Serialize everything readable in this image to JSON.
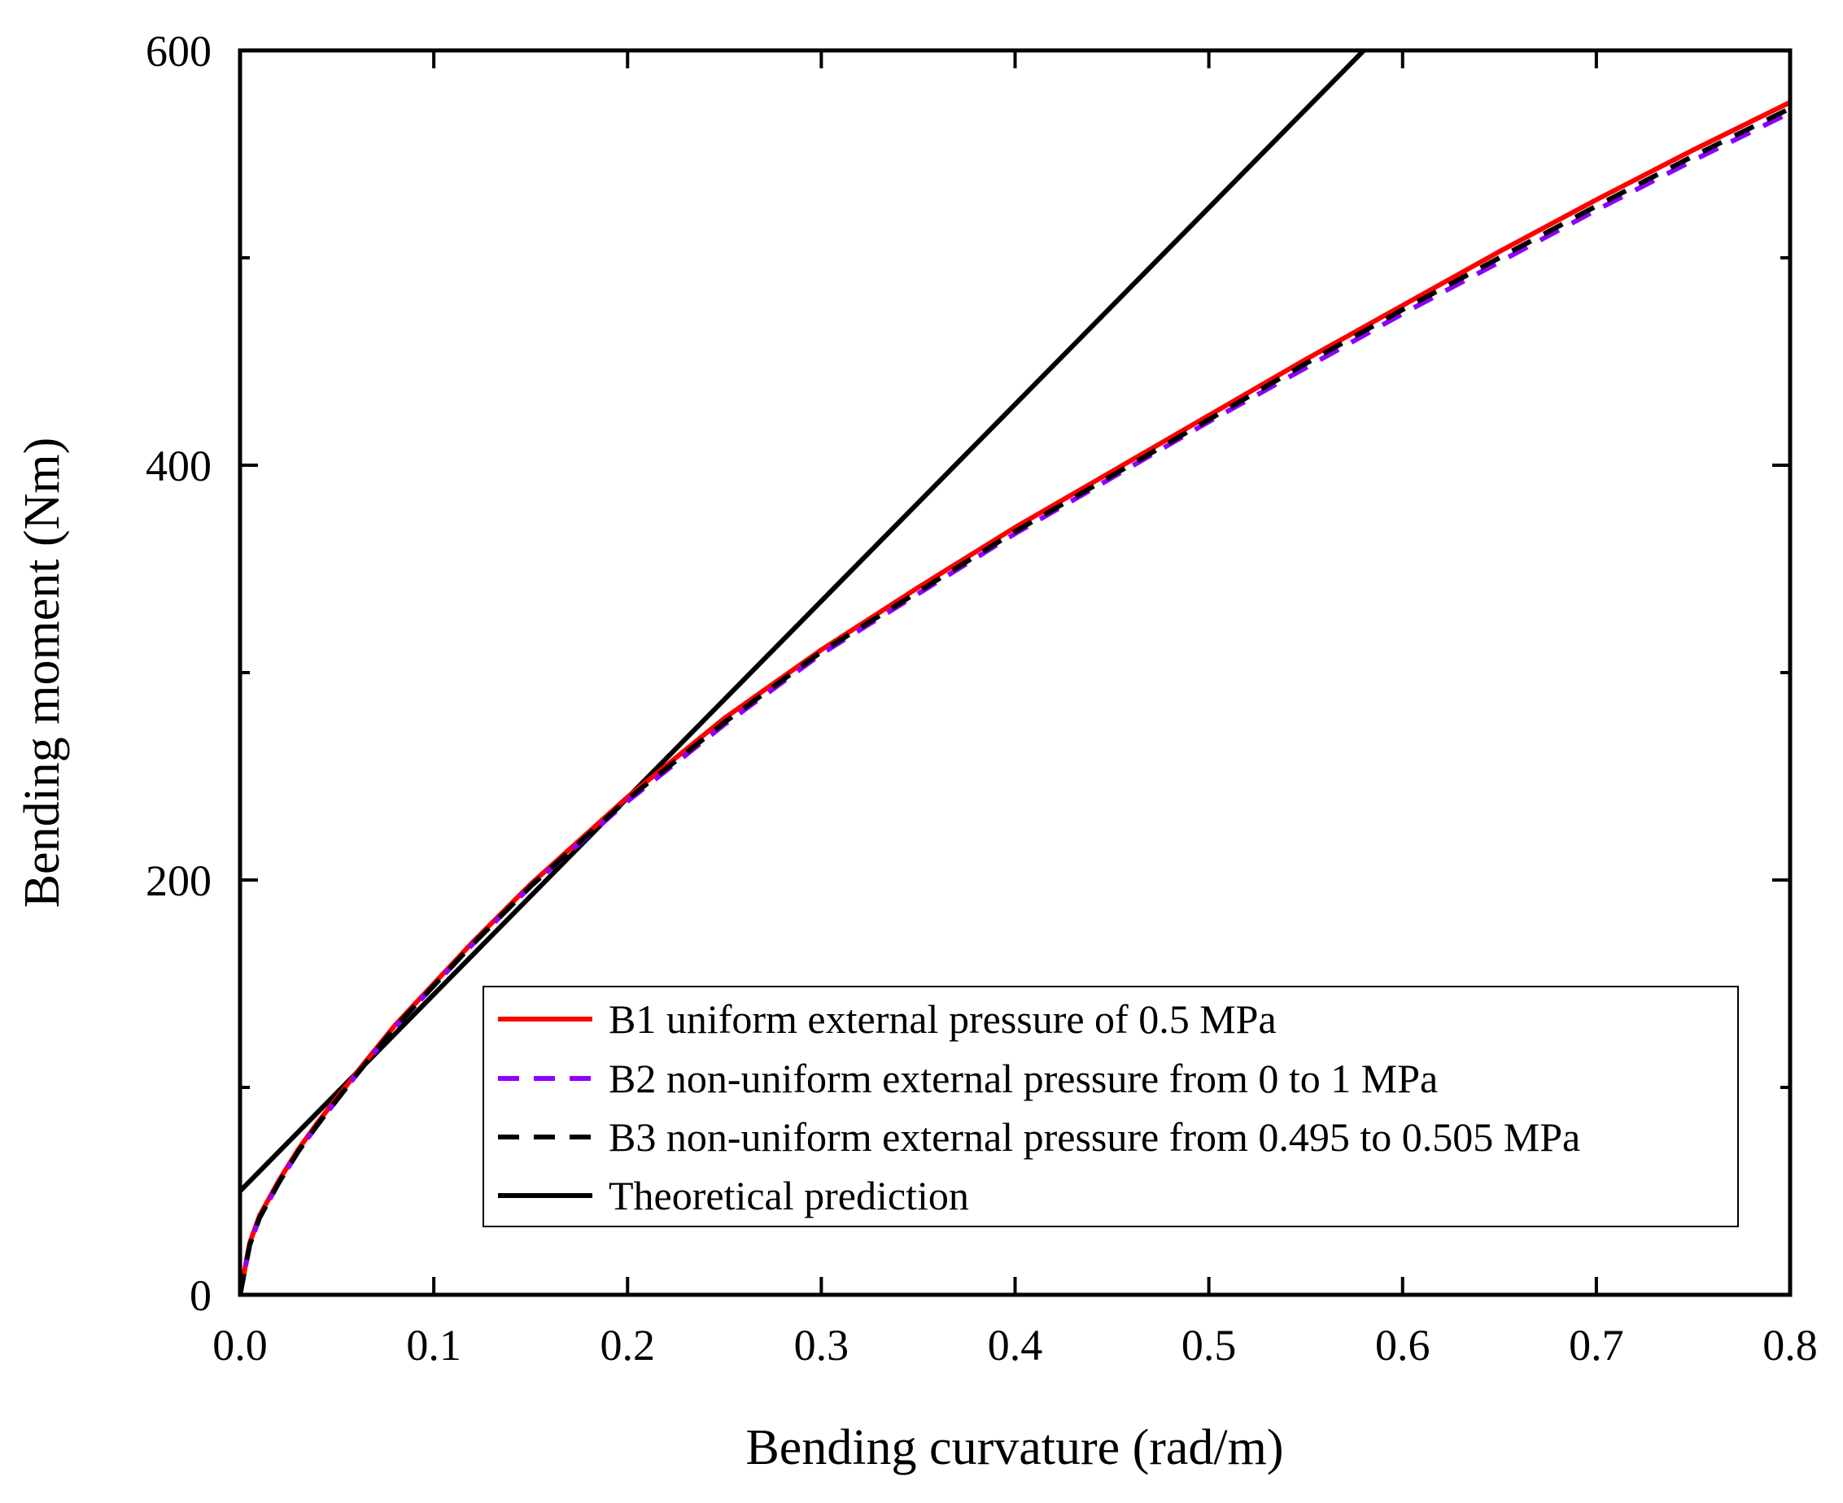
{
  "chart_data": {
    "type": "line",
    "xlabel": "Bending curvature (rad/m)",
    "ylabel": "Bending moment (Nm)",
    "xlim": [
      0,
      0.8
    ],
    "ylim": [
      0,
      600
    ],
    "x_ticks": [
      0.0,
      0.1,
      0.2,
      0.3,
      0.4,
      0.5,
      0.6,
      0.7,
      0.8
    ],
    "x_tick_labels": [
      "0.0",
      "0.1",
      "0.2",
      "0.3",
      "0.4",
      "0.5",
      "0.6",
      "0.7",
      "0.8"
    ],
    "y_ticks": [
      0,
      200,
      400,
      600
    ],
    "y_tick_labels": [
      "0",
      "200",
      "400",
      "600"
    ],
    "y_minor_ticks": [
      100,
      300,
      500
    ],
    "grid": false,
    "legend_position": "bottom-right",
    "series": [
      {
        "name": "B1 uniform external pressure of 0.5 MPa",
        "color": "#ff0000",
        "style": "solid",
        "x": [
          0,
          0.005,
          0.01,
          0.02,
          0.03,
          0.04,
          0.05,
          0.06,
          0.08,
          0.1,
          0.12,
          0.15,
          0.2,
          0.25,
          0.3,
          0.35,
          0.4,
          0.45,
          0.5,
          0.55,
          0.6,
          0.65,
          0.7,
          0.75,
          0.8
        ],
        "y": [
          0,
          25,
          38,
          55,
          70,
          83,
          95,
          107,
          130,
          150,
          170,
          198,
          240,
          278,
          311,
          341,
          370,
          397,
          424,
          451,
          477,
          503,
          528,
          552,
          575
        ]
      },
      {
        "name": "B2 non-uniform external pressure from 0 to 1 MPa",
        "color": "#8b00ff",
        "style": "dashed",
        "x": [
          0,
          0.005,
          0.01,
          0.02,
          0.03,
          0.04,
          0.05,
          0.06,
          0.08,
          0.1,
          0.12,
          0.15,
          0.2,
          0.25,
          0.3,
          0.35,
          0.4,
          0.45,
          0.5,
          0.55,
          0.6,
          0.65,
          0.7,
          0.75,
          0.8
        ],
        "y": [
          0,
          24,
          37,
          54,
          69,
          82,
          94,
          106,
          129,
          149,
          169,
          197,
          238,
          275,
          309,
          338,
          367,
          394,
          421,
          447,
          473,
          498,
          523,
          547,
          570
        ]
      },
      {
        "name": "B3 non-uniform external pressure from 0.495 to 0.505 MPa",
        "color": "#000000",
        "style": "dashed",
        "x": [
          0,
          0.005,
          0.01,
          0.02,
          0.03,
          0.04,
          0.05,
          0.06,
          0.08,
          0.1,
          0.12,
          0.15,
          0.2,
          0.25,
          0.3,
          0.35,
          0.4,
          0.45,
          0.5,
          0.55,
          0.6,
          0.65,
          0.7,
          0.75,
          0.8
        ],
        "y": [
          0,
          24,
          37,
          54,
          69,
          82,
          94,
          106,
          129,
          149,
          169,
          197,
          239,
          276,
          310,
          339,
          368,
          395,
          422,
          449,
          475,
          500,
          525,
          549,
          572
        ]
      },
      {
        "name": "Theoretical prediction",
        "color": "#000000",
        "style": "solid",
        "x": [
          0,
          0.58
        ],
        "y": [
          50,
          600
        ]
      }
    ]
  }
}
